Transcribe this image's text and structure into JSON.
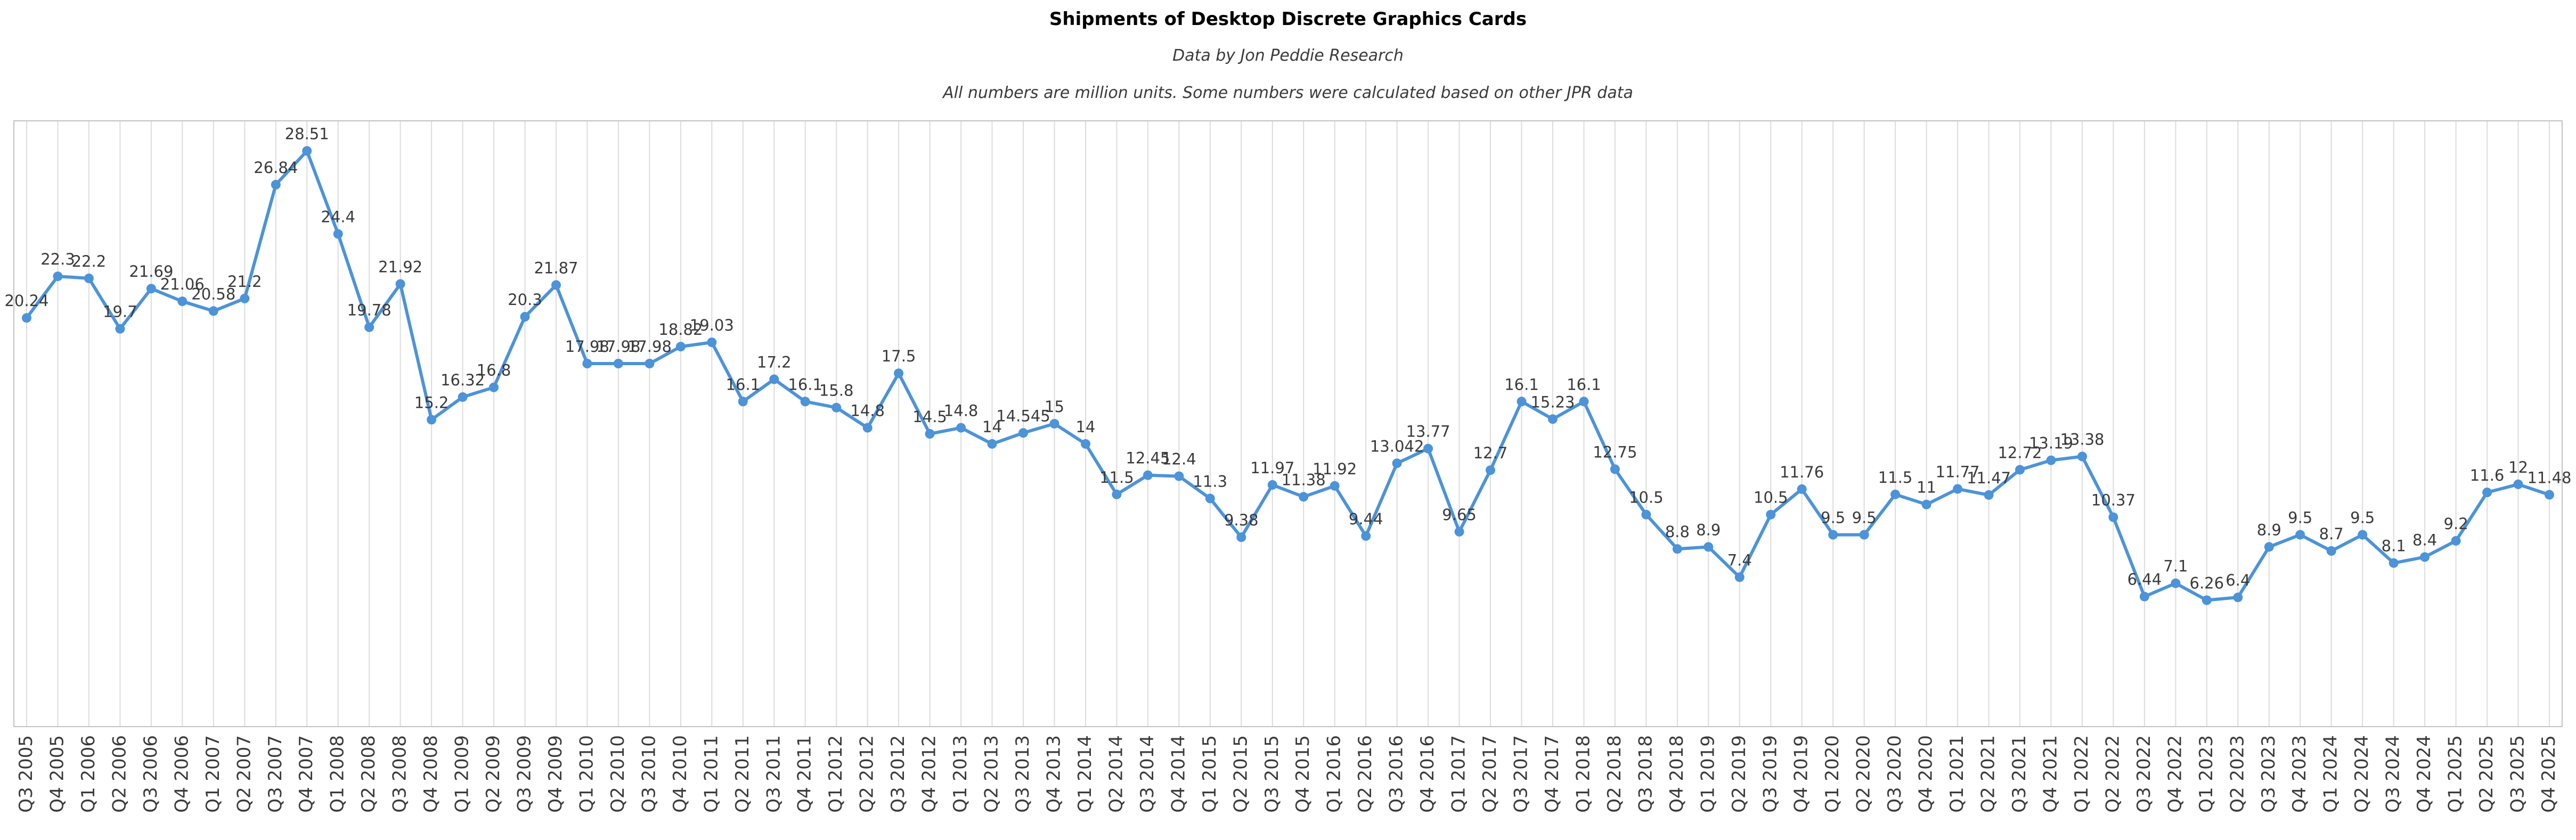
{
  "header": {
    "title": "Shipments of Desktop Discrete Graphics Cards",
    "subtitle1": "Data by Jon Peddie Research",
    "subtitle2": "All numbers are million units. Some numbers were calculated based on other JPR data"
  },
  "colors": {
    "line": "#4C93D9",
    "grid": "#DCDCDC",
    "border": "#C2C2C2",
    "label": "#3A3A3A",
    "background": "#FFFFFF"
  },
  "chart_data": {
    "type": "line",
    "title": "Shipments of Desktop Discrete Graphics Cards",
    "subtitle": "Data by Jon Peddie Research",
    "note": "All numbers are million units. Some numbers were calculated based on other JPR data",
    "xlabel": "",
    "ylabel": "",
    "ylim": [
      0,
      30
    ],
    "grid": "vertical-only",
    "y_axis_labels_visible": false,
    "legend_position": "none",
    "marker": "circle",
    "data_labels": true,
    "line_color": "#4C93D9",
    "categories": [
      "Q3 2005",
      "Q4 2005",
      "Q1 2006",
      "Q2 2006",
      "Q3 2006",
      "Q4 2006",
      "Q1 2007",
      "Q2 2007",
      "Q3 2007",
      "Q4 2007",
      "Q1 2008",
      "Q2 2008",
      "Q3 2008",
      "Q4 2008",
      "Q1 2009",
      "Q2 2009",
      "Q3 2009",
      "Q4 2009",
      "Q1 2010",
      "Q2 2010",
      "Q3 2010",
      "Q4 2010",
      "Q1 2011",
      "Q2 2011",
      "Q3 2011",
      "Q4 2011",
      "Q1 2012",
      "Q2 2012",
      "Q3 2012",
      "Q4 2012",
      "Q1 2013",
      "Q2 2013",
      "Q3 2013",
      "Q4 2013",
      "Q1 2014",
      "Q2 2014",
      "Q3 2014",
      "Q4 2014",
      "Q1 2015",
      "Q2 2015",
      "Q3 2015",
      "Q4 2015",
      "Q1 2016",
      "Q2 2016",
      "Q3 2016",
      "Q4 2016",
      "Q1 2017",
      "Q2 2017",
      "Q3 2017",
      "Q4 2017",
      "Q1 2018",
      "Q2 2018",
      "Q3 2018",
      "Q4 2018",
      "Q1 2019",
      "Q2 2019",
      "Q3 2019",
      "Q4 2019",
      "Q1 2020",
      "Q2 2020",
      "Q3 2020",
      "Q4 2020",
      "Q1 2021",
      "Q2 2021",
      "Q3 2021",
      "Q4 2021",
      "Q1 2022",
      "Q2 2022",
      "Q3 2022",
      "Q4 2022",
      "Q1 2023",
      "Q2 2023",
      "Q3 2023",
      "Q4 2023",
      "Q1 2024",
      "Q2 2024",
      "Q3 2024",
      "Q4 2024",
      "Q1 2025",
      "Q2 2025",
      "Q3 2025",
      "Q4 2025"
    ],
    "values": [
      20.24,
      22.3,
      22.2,
      19.7,
      21.69,
      21.06,
      20.58,
      21.2,
      26.84,
      28.51,
      24.4,
      19.78,
      21.92,
      15.2,
      16.32,
      16.8,
      20.3,
      21.87,
      17.98,
      17.98,
      17.98,
      18.82,
      19.03,
      16.1,
      17.2,
      16.1,
      15.8,
      14.8,
      17.5,
      14.5,
      14.8,
      14,
      14.545,
      15,
      14,
      11.5,
      12.45,
      12.4,
      11.3,
      9.38,
      11.97,
      11.38,
      11.92,
      9.44,
      13.042,
      13.77,
      9.65,
      12.7,
      16.1,
      15.23,
      16.1,
      12.75,
      10.5,
      8.8,
      8.9,
      7.4,
      10.5,
      11.76,
      9.5,
      9.5,
      11.5,
      11,
      11.77,
      11.47,
      12.72,
      13.19,
      13.38,
      10.37,
      6.44,
      7.1,
      6.26,
      6.4,
      8.9,
      9.5,
      8.7,
      9.5,
      8.1,
      8.4,
      9.2,
      11.6,
      12,
      11.48
    ]
  }
}
